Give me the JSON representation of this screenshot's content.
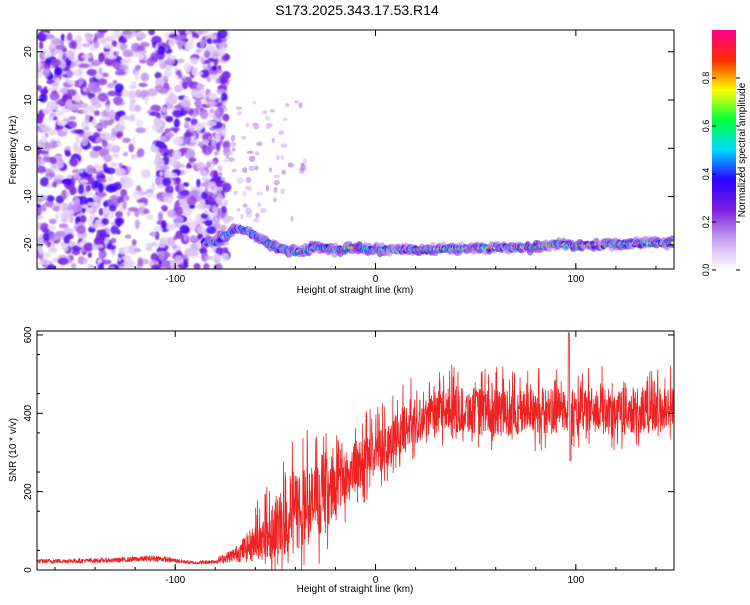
{
  "title": "S173.2025.343.17.53.R14",
  "chart_data": [
    {
      "type": "heatmap",
      "title": "S173.2025.343.17.53.R14",
      "xlabel": "Height of straight line (km)",
      "ylabel": "Frequency (Hz)",
      "xlim": [
        -169,
        149
      ],
      "ylim": [
        -25,
        24.5
      ],
      "xticks": [
        -100,
        0,
        100
      ],
      "yticks": [
        -20,
        -10,
        0,
        10,
        20
      ],
      "colorbar": {
        "label": "Normalized spectral amplitude",
        "range": [
          0,
          1
        ],
        "ticks": [
          "0.0",
          "0.2",
          "0.4",
          "0.6",
          "0.8"
        ],
        "colors": [
          "#ffffff",
          "#c9a3f0",
          "#7b1fe0",
          "#2a00ff",
          "#00d8ff",
          "#00ff3c",
          "#ffff00",
          "#ff2a00",
          "#ff0090"
        ]
      },
      "ridge_line": {
        "description_points_x": [
          -80,
          -70,
          -60,
          -50,
          -40,
          -30,
          -20,
          -10,
          0,
          20,
          40,
          60,
          80,
          90,
          100,
          120,
          149
        ],
        "description_points_y": [
          -19.5,
          -16.5,
          -18,
          -20.5,
          -21.5,
          -20.5,
          -21,
          -20.5,
          -21,
          -21,
          -20.8,
          -20.6,
          -20.5,
          -19.8,
          -20.2,
          -19.8,
          -19.6
        ]
      }
    },
    {
      "type": "line",
      "xlabel": "Height of straight line (km)",
      "ylabel": "SNR (10 * v/v)",
      "xlim": [
        -169,
        149
      ],
      "ylim": [
        0,
        610
      ],
      "xticks": [
        -100,
        0,
        100
      ],
      "yticks": [
        0,
        200,
        400,
        600
      ],
      "color": "#ff2020",
      "envelope_x": [
        -169,
        -130,
        -110,
        -90,
        -80,
        -70,
        -60,
        -50,
        -40,
        -30,
        -20,
        -10,
        0,
        10,
        20,
        30,
        40,
        60,
        80,
        100,
        120,
        149
      ],
      "envelope_mean": [
        22,
        25,
        30,
        18,
        22,
        40,
        70,
        110,
        150,
        170,
        220,
        260,
        300,
        340,
        380,
        405,
        410,
        400,
        405,
        410,
        405,
        410
      ],
      "envelope_amp": [
        6,
        6,
        8,
        4,
        6,
        20,
        50,
        80,
        110,
        100,
        80,
        70,
        60,
        60,
        60,
        50,
        60,
        60,
        60,
        60,
        60,
        60
      ]
    }
  ]
}
